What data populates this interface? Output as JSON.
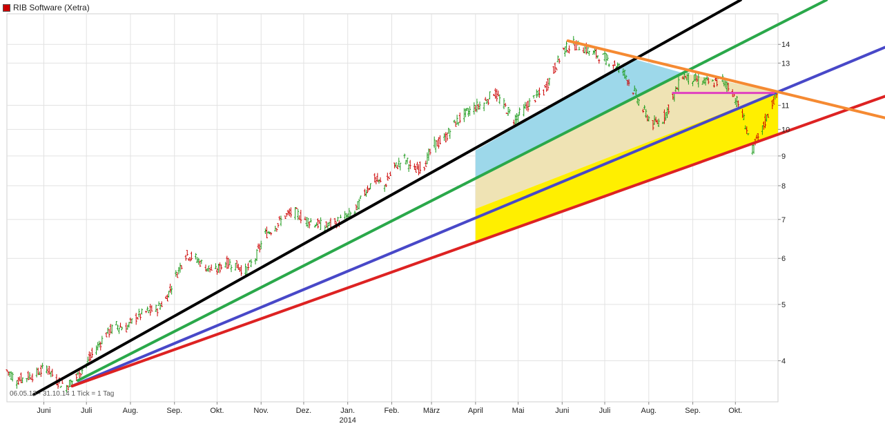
{
  "header": {
    "title": "RIB Software (Xetra)",
    "swatch_color": "#cc0000"
  },
  "footer": {
    "info": "06.05.13 - 31.10.14   1 Tick = 1 Tag"
  },
  "chart_data": {
    "type": "line",
    "title": "RIB Software (Xetra)",
    "y_scale": "log",
    "ylim": [
      3.4,
      15.8
    ],
    "y_ticks": [
      4,
      5,
      6,
      7,
      8,
      9,
      10,
      11,
      13,
      14
    ],
    "x_ticks": [
      {
        "label": "Juni",
        "date": "2013-06-01"
      },
      {
        "label": "Juli",
        "date": "2013-07-01"
      },
      {
        "label": "Aug.",
        "date": "2013-08-01"
      },
      {
        "label": "Sep.",
        "date": "2013-09-01"
      },
      {
        "label": "Okt.",
        "date": "2013-10-01"
      },
      {
        "label": "Nov.",
        "date": "2013-11-01"
      },
      {
        "label": "Dez.",
        "date": "2013-12-01"
      },
      {
        "label": "Jan.",
        "date": "2014-01-01"
      },
      {
        "label": "Feb.",
        "date": "2014-02-01"
      },
      {
        "label": "März",
        "date": "2014-03-01"
      },
      {
        "label": "April",
        "date": "2014-04-01"
      },
      {
        "label": "Mai",
        "date": "2014-05-01"
      },
      {
        "label": "Juni",
        "date": "2014-06-01"
      },
      {
        "label": "Juli",
        "date": "2014-07-01"
      },
      {
        "label": "Aug.",
        "date": "2014-08-01"
      },
      {
        "label": "Sep.",
        "date": "2014-09-01"
      },
      {
        "label": "Okt.",
        "date": "2014-10-01"
      }
    ],
    "year_label": "2014",
    "grid": true,
    "series": [
      {
        "color": "#1a9a1a",
        "down_color": "#cc0000",
        "values": [
          [
            "2013-05-06",
            3.85
          ],
          [
            "2013-05-13",
            3.7
          ],
          [
            "2013-05-20",
            3.75
          ],
          [
            "2013-05-27",
            3.8
          ],
          [
            "2013-06-03",
            3.9
          ],
          [
            "2013-06-10",
            3.7
          ],
          [
            "2013-06-17",
            3.62
          ],
          [
            "2013-06-24",
            3.75
          ],
          [
            "2013-07-01",
            3.95
          ],
          [
            "2013-07-08",
            4.2
          ],
          [
            "2013-07-15",
            4.45
          ],
          [
            "2013-07-22",
            4.6
          ],
          [
            "2013-07-29",
            4.55
          ],
          [
            "2013-08-05",
            4.75
          ],
          [
            "2013-08-12",
            4.85
          ],
          [
            "2013-08-19",
            4.9
          ],
          [
            "2013-08-26",
            5.1
          ],
          [
            "2013-09-02",
            5.6
          ],
          [
            "2013-09-09",
            6.1
          ],
          [
            "2013-09-16",
            6.0
          ],
          [
            "2013-09-23",
            5.8
          ],
          [
            "2013-09-30",
            5.7
          ],
          [
            "2013-10-07",
            5.9
          ],
          [
            "2013-10-14",
            5.85
          ],
          [
            "2013-10-21",
            5.7
          ],
          [
            "2013-10-28",
            6.0
          ],
          [
            "2013-11-04",
            6.6
          ],
          [
            "2013-11-11",
            6.8
          ],
          [
            "2013-11-18",
            7.1
          ],
          [
            "2013-11-25",
            7.2
          ],
          [
            "2013-12-02",
            7.0
          ],
          [
            "2013-12-09",
            6.9
          ],
          [
            "2013-12-16",
            6.8
          ],
          [
            "2013-12-23",
            6.9
          ],
          [
            "2014-01-06",
            7.2
          ],
          [
            "2014-01-13",
            7.8
          ],
          [
            "2014-01-20",
            8.2
          ],
          [
            "2014-01-27",
            8.0
          ],
          [
            "2014-02-03",
            8.6
          ],
          [
            "2014-02-10",
            8.9
          ],
          [
            "2014-02-17",
            8.5
          ],
          [
            "2014-02-24",
            8.7
          ],
          [
            "2014-03-03",
            9.4
          ],
          [
            "2014-03-10",
            9.6
          ],
          [
            "2014-03-17",
            10.2
          ],
          [
            "2014-03-24",
            10.6
          ],
          [
            "2014-03-31",
            10.9
          ],
          [
            "2014-04-07",
            11.1
          ],
          [
            "2014-04-14",
            11.6
          ],
          [
            "2014-04-21",
            11.0
          ],
          [
            "2014-04-28",
            10.4
          ],
          [
            "2014-05-05",
            10.8
          ],
          [
            "2014-05-12",
            11.3
          ],
          [
            "2014-05-19",
            11.6
          ],
          [
            "2014-05-26",
            12.6
          ],
          [
            "2014-06-02",
            13.7
          ],
          [
            "2014-06-09",
            14.0
          ],
          [
            "2014-06-16",
            13.8
          ],
          [
            "2014-06-23",
            13.5
          ],
          [
            "2014-06-30",
            13.3
          ],
          [
            "2014-07-07",
            13.0
          ],
          [
            "2014-07-14",
            12.6
          ],
          [
            "2014-07-21",
            11.7
          ],
          [
            "2014-07-28",
            10.8
          ],
          [
            "2014-08-04",
            10.2
          ],
          [
            "2014-08-11",
            10.4
          ],
          [
            "2014-08-18",
            11.3
          ],
          [
            "2014-08-25",
            12.4
          ],
          [
            "2014-09-01",
            12.2
          ],
          [
            "2014-09-08",
            12.1
          ],
          [
            "2014-09-15",
            12.0
          ],
          [
            "2014-09-22",
            12.2
          ],
          [
            "2014-09-29",
            11.6
          ],
          [
            "2014-10-06",
            10.6
          ],
          [
            "2014-10-13",
            9.2
          ],
          [
            "2014-10-20",
            10.0
          ],
          [
            "2014-10-27",
            11.1
          ],
          [
            "2014-10-31",
            11.6
          ]
        ]
      }
    ],
    "trendlines": [
      {
        "color": "#000000",
        "from": [
          "2013-05-25",
          3.5
        ],
        "to": [
          "2014-07-22",
          13.2
        ]
      },
      {
        "color": "#2aa84a",
        "from": [
          "2013-06-25",
          3.7
        ],
        "to": [
          "2014-08-25",
          12.5
        ]
      },
      {
        "color": "#4848c8",
        "from": [
          "2013-06-21",
          3.62
        ],
        "to": [
          "2014-10-31",
          11.6
        ]
      },
      {
        "color": "#dd2222",
        "from": [
          "2013-06-21",
          3.62
        ],
        "to": [
          "2014-10-31",
          9.8
        ]
      },
      {
        "color": "#f58a32",
        "from": [
          "2014-06-05",
          14.2
        ],
        "to": [
          "2014-10-31",
          11.6
        ]
      },
      {
        "color": "#e040c0",
        "from": [
          "2014-08-18",
          11.55
        ],
        "to": [
          "2014-10-28",
          11.55
        ]
      }
    ],
    "fills": [
      {
        "color": "#9dd8ea",
        "points": [
          [
            "2014-04-01",
            9.2
          ],
          [
            "2014-07-22",
            13.2
          ],
          [
            "2014-08-25",
            12.5
          ],
          [
            "2014-04-01",
            8.2
          ]
        ]
      },
      {
        "color": "#efe3b4",
        "points": [
          [
            "2014-04-01",
            8.2
          ],
          [
            "2014-08-25",
            12.5
          ],
          [
            "2014-10-31",
            11.6
          ],
          [
            "2014-04-01",
            7.3
          ]
        ]
      },
      {
        "color": "#ffef00",
        "points": [
          [
            "2014-04-01",
            7.3
          ],
          [
            "2014-10-31",
            11.6
          ],
          [
            "2014-10-31",
            9.8
          ],
          [
            "2014-04-01",
            6.4
          ]
        ]
      }
    ]
  }
}
